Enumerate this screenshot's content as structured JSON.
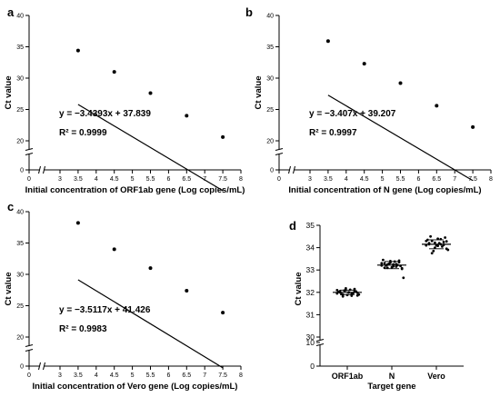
{
  "chart_data": [
    {
      "type": "scatter",
      "panel_label": "a",
      "title": "",
      "xlabel": "Initial concentration of ORF1ab gene (Log copies/mL)",
      "ylabel": "Ct value",
      "xlim": [
        0,
        8
      ],
      "ylim": [
        0,
        40
      ],
      "axis_break": {
        "x": [
          0,
          3
        ],
        "y": [
          0,
          15
        ]
      },
      "x_ticks": [
        0,
        3,
        3.5,
        4,
        4.5,
        5,
        5.5,
        6,
        6.5,
        7,
        7.5,
        8
      ],
      "y_ticks": [
        0,
        20,
        25,
        30,
        35,
        40
      ],
      "x": [
        3.5,
        4.5,
        5.5,
        6.5,
        7.5
      ],
      "y": [
        34.4,
        31.0,
        27.6,
        24.0,
        20.6
      ],
      "fit_line": {
        "slope": -3.4393,
        "intercept": 37.839
      },
      "annotation": {
        "equation": "y = −3.4393x + 37.839",
        "r2_label": "R² = 0.9999"
      }
    },
    {
      "type": "scatter",
      "panel_label": "b",
      "title": "",
      "xlabel": "Initial concentration of N gene (Log copies/mL)",
      "ylabel": "Ct value",
      "xlim": [
        0,
        8
      ],
      "ylim": [
        0,
        40
      ],
      "axis_break": {
        "x": [
          0,
          3
        ],
        "y": [
          0,
          15
        ]
      },
      "x_ticks": [
        0,
        3,
        3.5,
        4,
        4.5,
        5,
        5.5,
        6,
        6.5,
        7,
        7.5,
        8
      ],
      "y_ticks": [
        0,
        20,
        25,
        30,
        35,
        40
      ],
      "x": [
        3.5,
        4.5,
        5.5,
        6.5,
        7.5
      ],
      "y": [
        35.9,
        32.3,
        29.2,
        25.6,
        22.2
      ],
      "fit_line": {
        "slope": -3.407,
        "intercept": 39.207
      },
      "annotation": {
        "equation": "y = −3.407x + 39.207",
        "r2_label": "R² = 0.9997"
      }
    },
    {
      "type": "scatter",
      "panel_label": "c",
      "title": "",
      "xlabel": "Initial concentration of Vero gene (Log copies/mL)",
      "ylabel": "Ct value",
      "xlim": [
        0,
        8
      ],
      "ylim": [
        0,
        40
      ],
      "axis_break": {
        "x": [
          0,
          3
        ],
        "y": [
          0,
          15
        ]
      },
      "x_ticks": [
        0,
        3,
        3.5,
        4,
        4.5,
        5,
        5.5,
        6,
        6.5,
        7,
        7.5,
        8
      ],
      "y_ticks": [
        0,
        20,
        25,
        30,
        35,
        40
      ],
      "x": [
        3.5,
        4.5,
        5.5,
        6.5,
        7.5
      ],
      "y": [
        38.2,
        34.0,
        31.0,
        27.4,
        23.9
      ],
      "fit_line": {
        "slope": -3.5117,
        "intercept": 41.426
      },
      "annotation": {
        "equation": "y = −3.5117x + 41.426",
        "r2_label": "R² = 0.9983"
      }
    },
    {
      "type": "scatter",
      "panel_label": "d",
      "title": "",
      "xlabel": "Target gene",
      "ylabel": "Ct value",
      "ylim": [
        0,
        35
      ],
      "axis_break": {
        "y": [
          10,
          30
        ]
      },
      "y_ticks": [
        0,
        10,
        30,
        31,
        32,
        33,
        34,
        35
      ],
      "categories": [
        "ORF1ab",
        "N",
        "Vero"
      ],
      "means": [
        32.0,
        33.22,
        34.15
      ],
      "sd": [
        0.1,
        0.16,
        0.2
      ],
      "series": [
        {
          "category": "ORF1ab",
          "values": [
            31.95,
            32.05,
            31.9,
            32.1,
            32.0,
            31.85,
            32.15,
            31.98,
            32.02,
            31.92,
            32.08,
            31.88,
            32.12,
            31.96,
            32.04,
            31.9,
            32.1,
            32.0,
            31.82,
            32.18,
            32.0,
            31.94,
            32.06,
            31.86
          ]
        },
        {
          "category": "N",
          "values": [
            33.2,
            33.3,
            33.1,
            33.4,
            33.25,
            33.15,
            33.35,
            33.05,
            33.45,
            33.2,
            33.28,
            33.12,
            33.38,
            33.22,
            33.18,
            32.65,
            33.3,
            33.1,
            33.24,
            33.32,
            33.16,
            33.26,
            33.42,
            33.08
          ]
        },
        {
          "category": "Vero",
          "values": [
            34.1,
            34.2,
            34.3,
            34.0,
            34.4,
            34.15,
            34.25,
            33.95,
            34.35,
            34.5,
            33.85,
            34.1,
            34.2,
            34.05,
            34.45,
            33.9,
            34.3,
            34.15,
            33.75,
            34.22,
            34.08,
            34.38,
            34.12,
            34.28
          ]
        }
      ]
    }
  ]
}
